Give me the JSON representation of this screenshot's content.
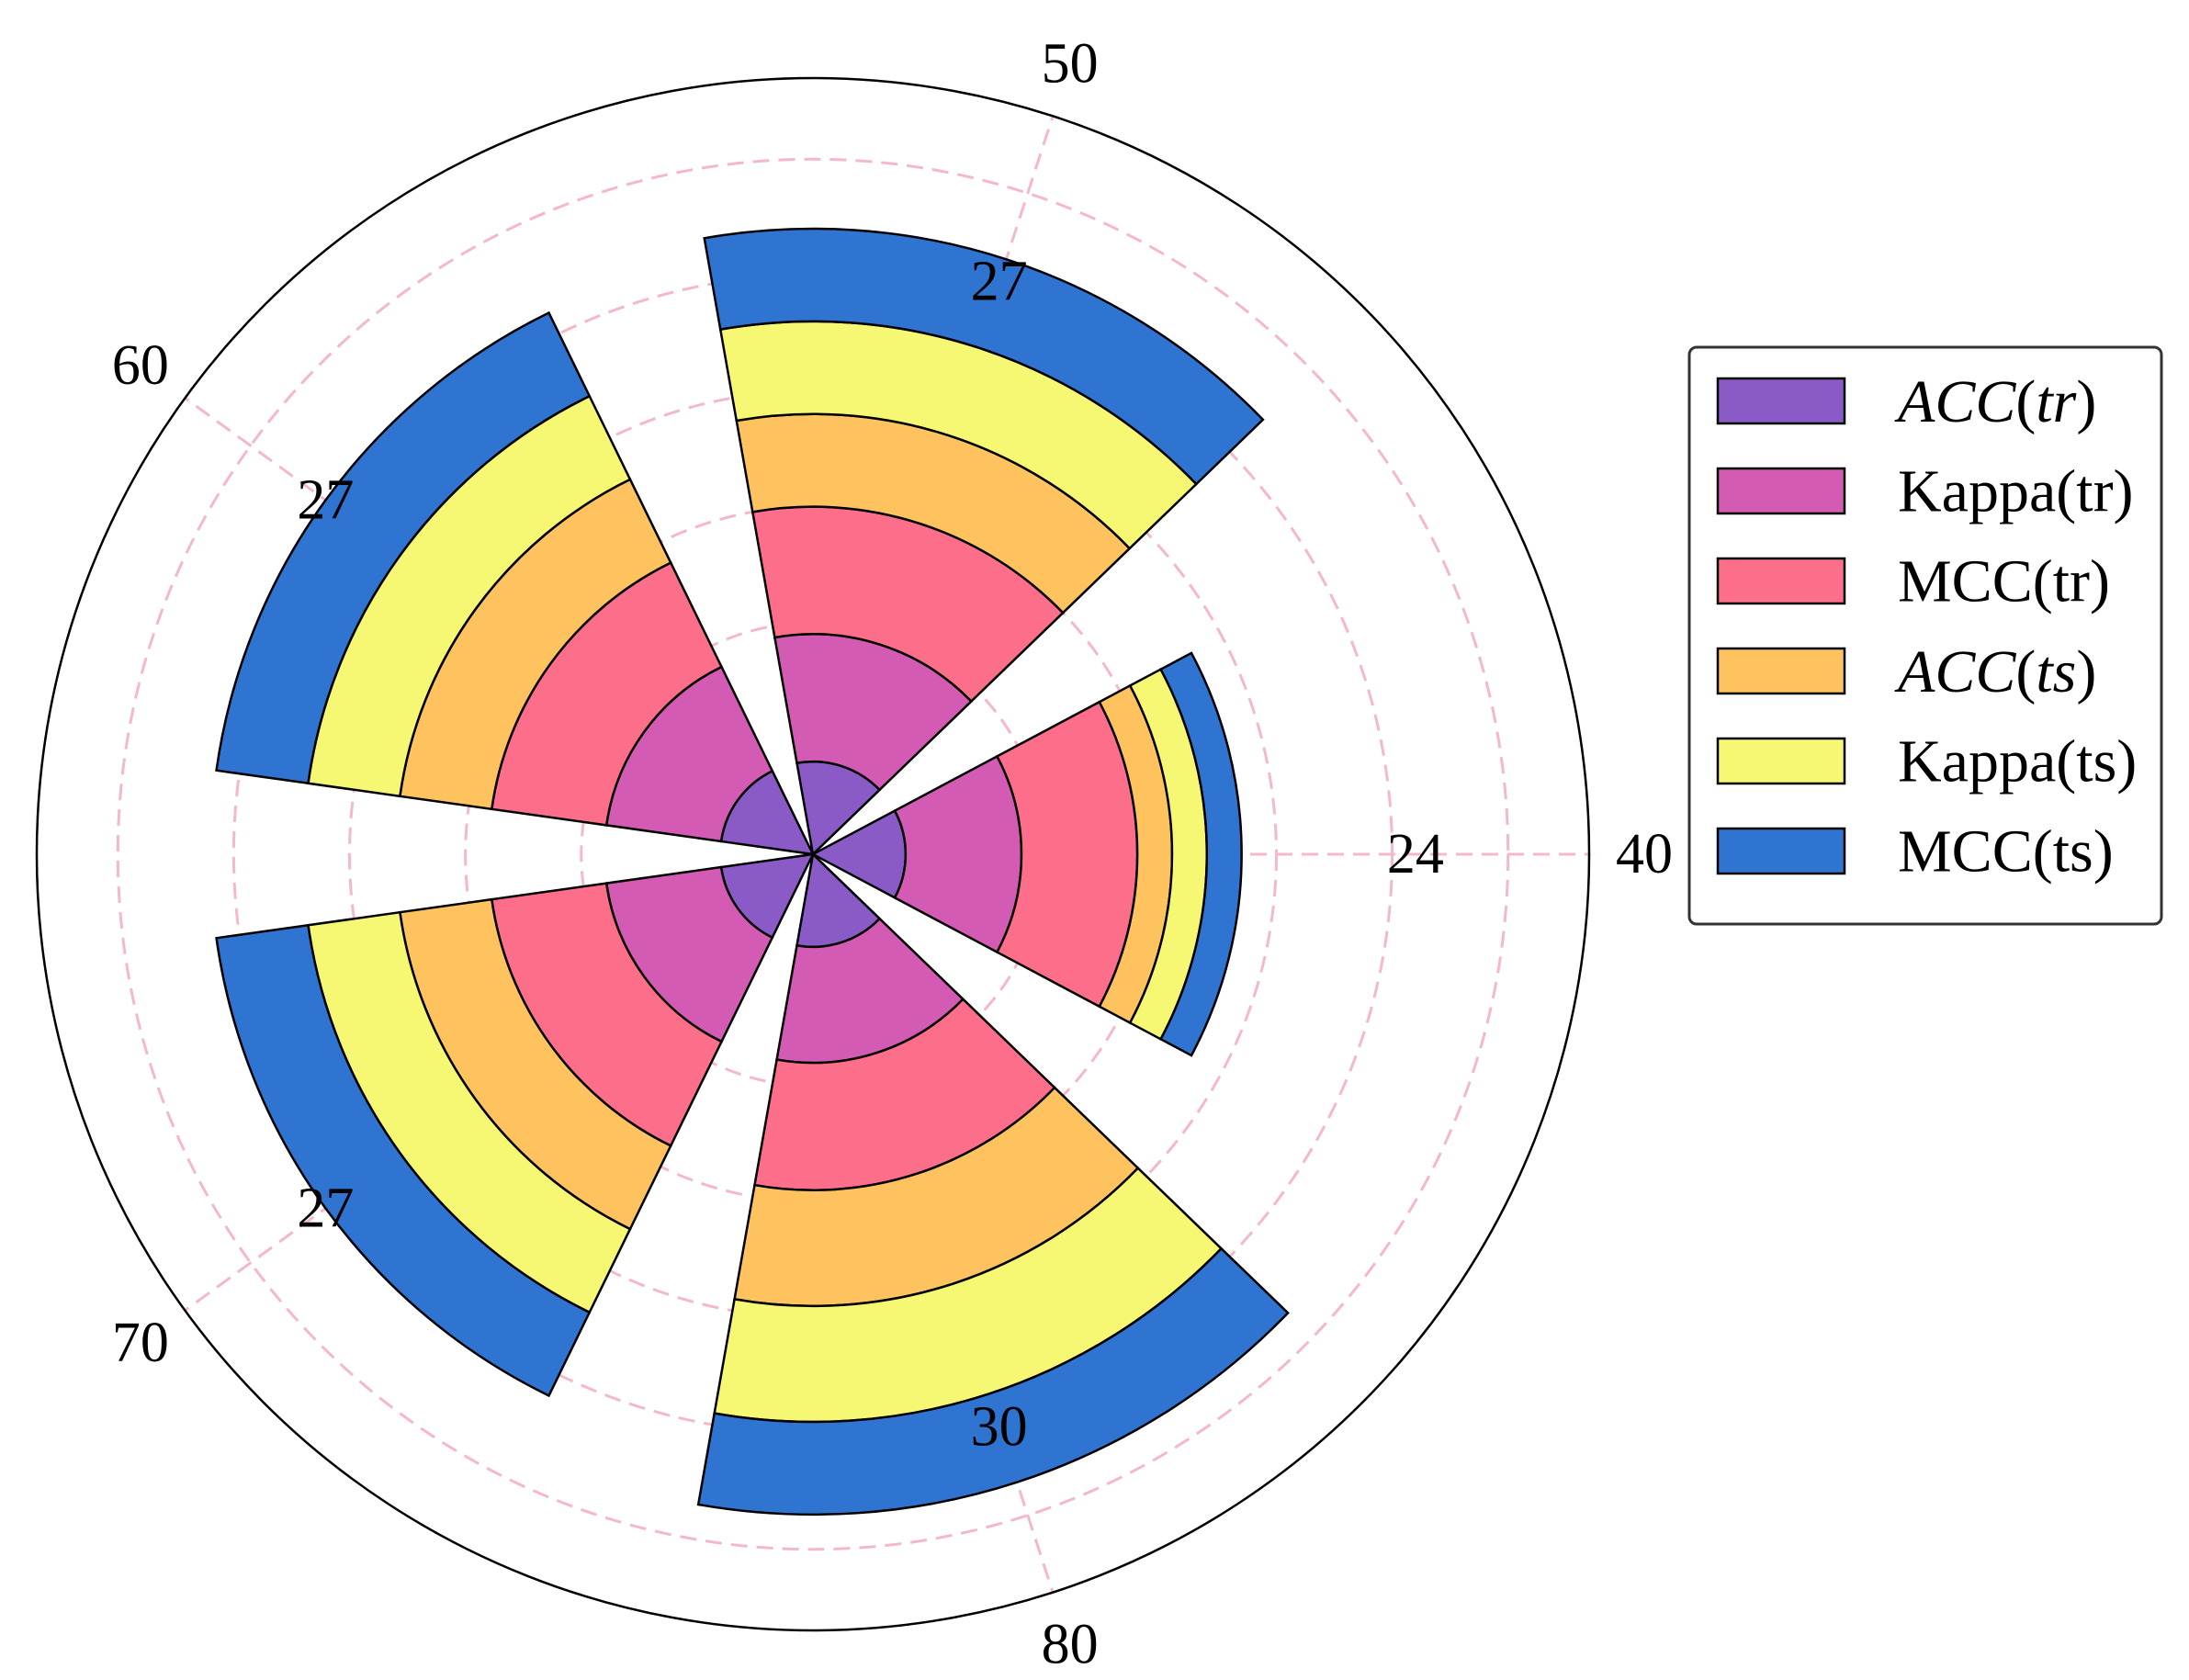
{
  "chart_data": {
    "type": "bar",
    "subtype": "polar-stacked-bar",
    "title": "",
    "xlabel": "",
    "ylabel": "",
    "categories": [
      "24",
      "27",
      "27",
      "27",
      "30"
    ],
    "category_angles_deg": [
      0,
      72,
      144,
      216,
      288
    ],
    "series": [
      {
        "name": "ACC(tr)",
        "math_style": true,
        "color": "#8a5bc7",
        "values": [
          8,
          8,
          8,
          8,
          8
        ]
      },
      {
        "name": "Kappa(tr)",
        "math_style": false,
        "color": "#d35bb3",
        "values": [
          10,
          11,
          10,
          10,
          10
        ]
      },
      {
        "name": "MCC(tr)",
        "math_style": false,
        "color": "#fd6e8a",
        "values": [
          10,
          11,
          10,
          10,
          11
        ]
      },
      {
        "name": "ACC(ts)",
        "math_style": true,
        "color": "#fec35e",
        "values": [
          3,
          8,
          8,
          8,
          10
        ]
      },
      {
        "name": "Kappa(ts)",
        "math_style": false,
        "color": "#f6f772",
        "values": [
          3,
          8,
          8,
          8,
          10
        ]
      },
      {
        "name": "MCC(ts)",
        "math_style": false,
        "color": "#2f74d1",
        "values": [
          3,
          8,
          8,
          8,
          8
        ]
      }
    ],
    "radial_ticks": [
      "40",
      "50",
      "60",
      "70",
      "80"
    ],
    "radial_tick_angles_deg": [
      0,
      72,
      144,
      216,
      288
    ],
    "ylim": [
      0,
      67
    ],
    "grid": true,
    "grid_color": "#f4b8c8",
    "legend_position": "right"
  }
}
